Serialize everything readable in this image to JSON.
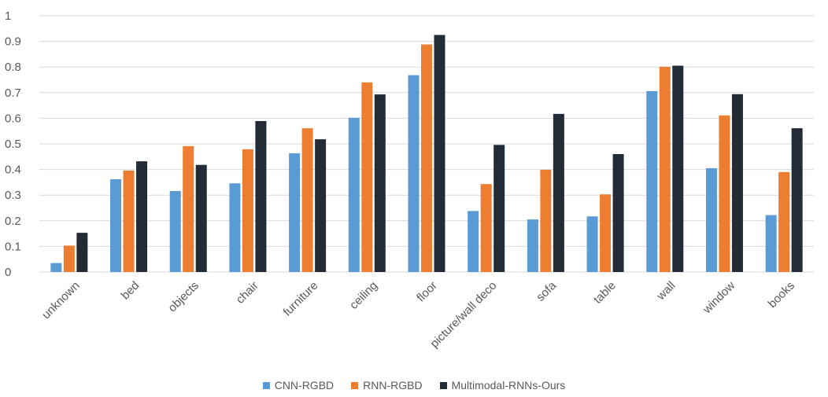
{
  "chart_data": {
    "type": "bar",
    "title": "",
    "xlabel": "",
    "ylabel": "",
    "ylim": [
      0,
      1
    ],
    "yticks": [
      "0",
      "0.1",
      "0.2",
      "0.3",
      "0.4",
      "0.5",
      "0.6",
      "0.7",
      "0.8",
      "0.9",
      "1"
    ],
    "grid": true,
    "legend_position": "bottom",
    "categories": [
      "unknown",
      "bed",
      "objects",
      "chair",
      "furniture",
      "ceiling",
      "floor",
      "picture/wall deco",
      "sofa",
      "table",
      "wall",
      "window",
      "books"
    ],
    "series": [
      {
        "name": "CNN-RGBD",
        "color": "#5B9BD5",
        "values": [
          0.035,
          0.362,
          0.316,
          0.346,
          0.463,
          0.602,
          0.768,
          0.238,
          0.205,
          0.217,
          0.706,
          0.405,
          0.222
        ]
      },
      {
        "name": "RNN-RGBD",
        "color": "#ED7D31",
        "values": [
          0.103,
          0.396,
          0.491,
          0.479,
          0.561,
          0.74,
          0.888,
          0.343,
          0.399,
          0.303,
          0.801,
          0.611,
          0.39
        ]
      },
      {
        "name": "Multimodal-RNNs-Ours",
        "color": "#232B36",
        "values": [
          0.153,
          0.432,
          0.418,
          0.589,
          0.518,
          0.693,
          0.925,
          0.496,
          0.617,
          0.46,
          0.805,
          0.694,
          0.561
        ]
      }
    ]
  }
}
